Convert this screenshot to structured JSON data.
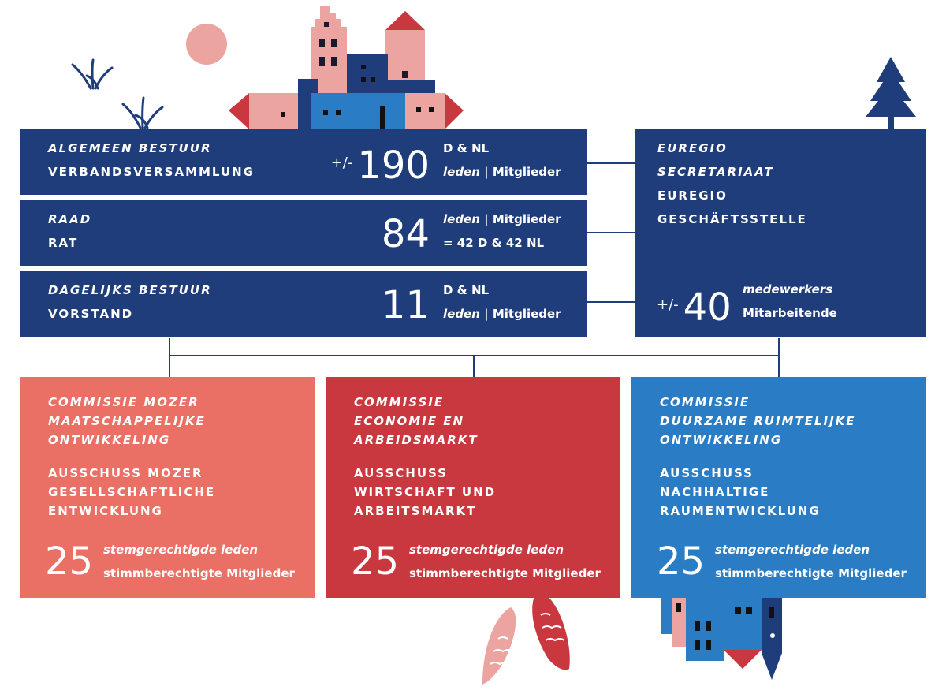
{
  "colors": {
    "navy": "#1f3d7a",
    "salmon": "#ea6f65",
    "red": "#c9383f",
    "blue": "#2a7cc4",
    "pink": "#eba4a0"
  },
  "bestuur": {
    "algemeen": {
      "nl": "ALGEMEEN BESTUUR",
      "de": "VERBANDSVERSAMMLUNG",
      "prefix": "+/-",
      "number": "190",
      "line1": "D & NL",
      "line2_nl": "leden",
      "line2_sep": " | ",
      "line2_de": "Mitglieder"
    },
    "raad": {
      "nl": "RAAD",
      "de": "RAT",
      "number": "84",
      "line1_nl": "leden",
      "line1_sep": " | ",
      "line1_de": "Mitglieder",
      "line2": "= 42 D & 42 NL"
    },
    "dagelijks": {
      "nl": "DAGELIJKS BESTUUR",
      "de": "VORSTAND",
      "number": "11",
      "line1": "D & NL",
      "line2_nl": "leden",
      "line2_sep": " | ",
      "line2_de": "Mitglieder"
    }
  },
  "secretariaat": {
    "nl1": "EUREGIO",
    "nl2": "SECRETARIAAT",
    "de1": "EUREGIO",
    "de2": "GESCHÄFTSSTELLE",
    "prefix": "+/-",
    "number": "40",
    "line1": "medewerkers",
    "line2": "Mitarbeitende"
  },
  "commissies": [
    {
      "nl": [
        "COMMISSIE MOZER",
        "MAATSCHAPPELIJKE",
        "ONTWIKKELING"
      ],
      "de": [
        "AUSSCHUSS MOZER",
        "GESELLSCHAFTLICHE",
        "ENTWICKLUNG"
      ],
      "number": "25",
      "line1": "stemgerechtigde leden",
      "line2": "stimmberechtigte Mitglieder"
    },
    {
      "nl": [
        "COMMISSIE",
        "ECONOMIE EN",
        "ARBEIDSMARKT"
      ],
      "de": [
        "AUSSCHUSS",
        "WIRTSCHAFT UND",
        "ARBEITSMARKT"
      ],
      "number": "25",
      "line1": "stemgerechtigde leden",
      "line2": "stimmberechtigte Mitglieder"
    },
    {
      "nl": [
        "COMMISSIE",
        "DUURZAME RUIMTELIJKE",
        "ONTWIKKELING"
      ],
      "de": [
        "AUSSCHUSS",
        "NACHHALTIGE",
        "RAUMENTWICKLUNG"
      ],
      "number": "25",
      "line1": "stemgerechtigde leden",
      "line2": "stimmberechtigte Mitglieder"
    }
  ]
}
